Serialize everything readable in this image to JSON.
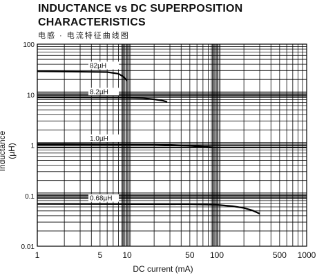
{
  "chart_data": {
    "type": "line",
    "title": "INDUCTANCE vs DC SUPERPOSITION",
    "title_line2": "CHARACTERISTICS",
    "subtitle": "电感 · 电流特征曲线图",
    "xlabel": "DC current (mA)",
    "ylabel": "Inductance (µH)",
    "x_scale": "log",
    "y_scale": "log",
    "xlim": [
      1,
      1000
    ],
    "ylim": [
      0.01,
      100
    ],
    "grid": true,
    "x_ticks": [
      1,
      5,
      10,
      50,
      100,
      500,
      1000
    ],
    "x_tick_labels": [
      "1",
      "5",
      "10",
      "50",
      "100",
      "500",
      "1000"
    ],
    "y_ticks": [
      0.01,
      0.1,
      1,
      10,
      100
    ],
    "y_tick_labels": [
      "0.01",
      "0.1",
      "1",
      "10",
      "100"
    ],
    "series": [
      {
        "name": "82µH",
        "x": [
          1,
          6,
          8,
          9,
          10
        ],
        "y": [
          29,
          28,
          26,
          23,
          19
        ]
      },
      {
        "name": "8.2µH",
        "x": [
          1,
          10,
          15,
          20,
          25,
          28
        ],
        "y": [
          8.8,
          8.7,
          8.5,
          8.1,
          7.6,
          7.2
        ]
      },
      {
        "name": "1.0µH",
        "x": [
          1,
          20,
          50,
          70,
          90
        ],
        "y": [
          1.05,
          1.02,
          0.97,
          0.94,
          0.9
        ]
      },
      {
        "name": "0.68µH",
        "x": [
          1,
          50,
          100,
          150,
          200,
          250,
          300
        ],
        "y": [
          0.069,
          0.068,
          0.066,
          0.062,
          0.057,
          0.051,
          0.044
        ]
      }
    ]
  }
}
